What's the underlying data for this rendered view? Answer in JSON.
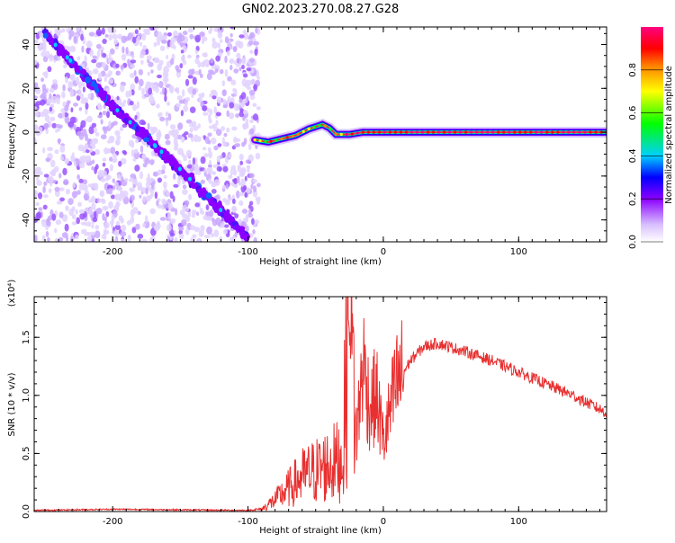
{
  "title": "GN02.2023.270.08.27.G28",
  "chart_data": [
    {
      "type": "heatmap",
      "xlabel": "Height of straight line (km)",
      "ylabel": "Frequency (Hz)",
      "xlim": [
        -258,
        165
      ],
      "ylim": [
        -50,
        48
      ],
      "x_ticks": [
        -200,
        -100,
        0,
        100
      ],
      "y_ticks": [
        -40,
        -20,
        0,
        20,
        40
      ],
      "colorbar": {
        "label": "Normalized spectral amplitude",
        "range": [
          0.0,
          1.0
        ],
        "ticks": [
          "0.0",
          "0.2",
          "0.4",
          "0.6",
          "0.8"
        ],
        "colors": [
          "#ffffff",
          "#8c00ff",
          "#0000ff",
          "#00d0ff",
          "#00ff00",
          "#ffff00",
          "#ff8000",
          "#ff0000",
          "#ff0080"
        ]
      },
      "features": {
        "scatter_region": [
          -258,
          -92
        ],
        "diagonal_track": {
          "x": [
            -250,
            -200,
            -150,
            -100
          ],
          "y": [
            45,
            12,
            -17,
            -48
          ]
        },
        "carrier_line": {
          "x": [
            -95,
            -85,
            -75,
            -65,
            -55,
            -45,
            -40,
            -35,
            -25,
            -15,
            0,
            50,
            100,
            165
          ],
          "y": [
            -3.5,
            -4.5,
            -3,
            -1.5,
            1.5,
            3.5,
            2,
            -1,
            -1,
            0,
            0,
            0,
            0,
            0
          ]
        }
      }
    },
    {
      "type": "line",
      "xlabel": "Height of straight line (km)",
      "ylabel": "SNR (10 * v/v)",
      "y_multiplier": "(x10⁴)",
      "xlim": [
        -258,
        165
      ],
      "ylim": [
        0,
        1.85
      ],
      "x_ticks": [
        -200,
        -100,
        0,
        100
      ],
      "y_ticks": [
        "0.0",
        "0.5",
        "1.0",
        "1.5"
      ],
      "series": [
        {
          "color": "#e83030",
          "x": [
            -258,
            -200,
            -150,
            -100,
            -90,
            -80,
            -70,
            -60,
            -50,
            -40,
            -30,
            -25,
            -20,
            -15,
            -10,
            -5,
            0,
            10,
            20,
            30,
            40,
            60,
            80,
            100,
            120,
            140,
            165
          ],
          "y": [
            0.01,
            0.02,
            0.015,
            0.01,
            0.02,
            0.1,
            0.2,
            0.3,
            0.35,
            0.4,
            0.45,
            1.85,
            0.6,
            1.3,
            0.9,
            1.0,
            0.6,
            1.1,
            1.3,
            1.42,
            1.45,
            1.38,
            1.3,
            1.2,
            1.1,
            1.0,
            0.85
          ]
        }
      ]
    }
  ]
}
